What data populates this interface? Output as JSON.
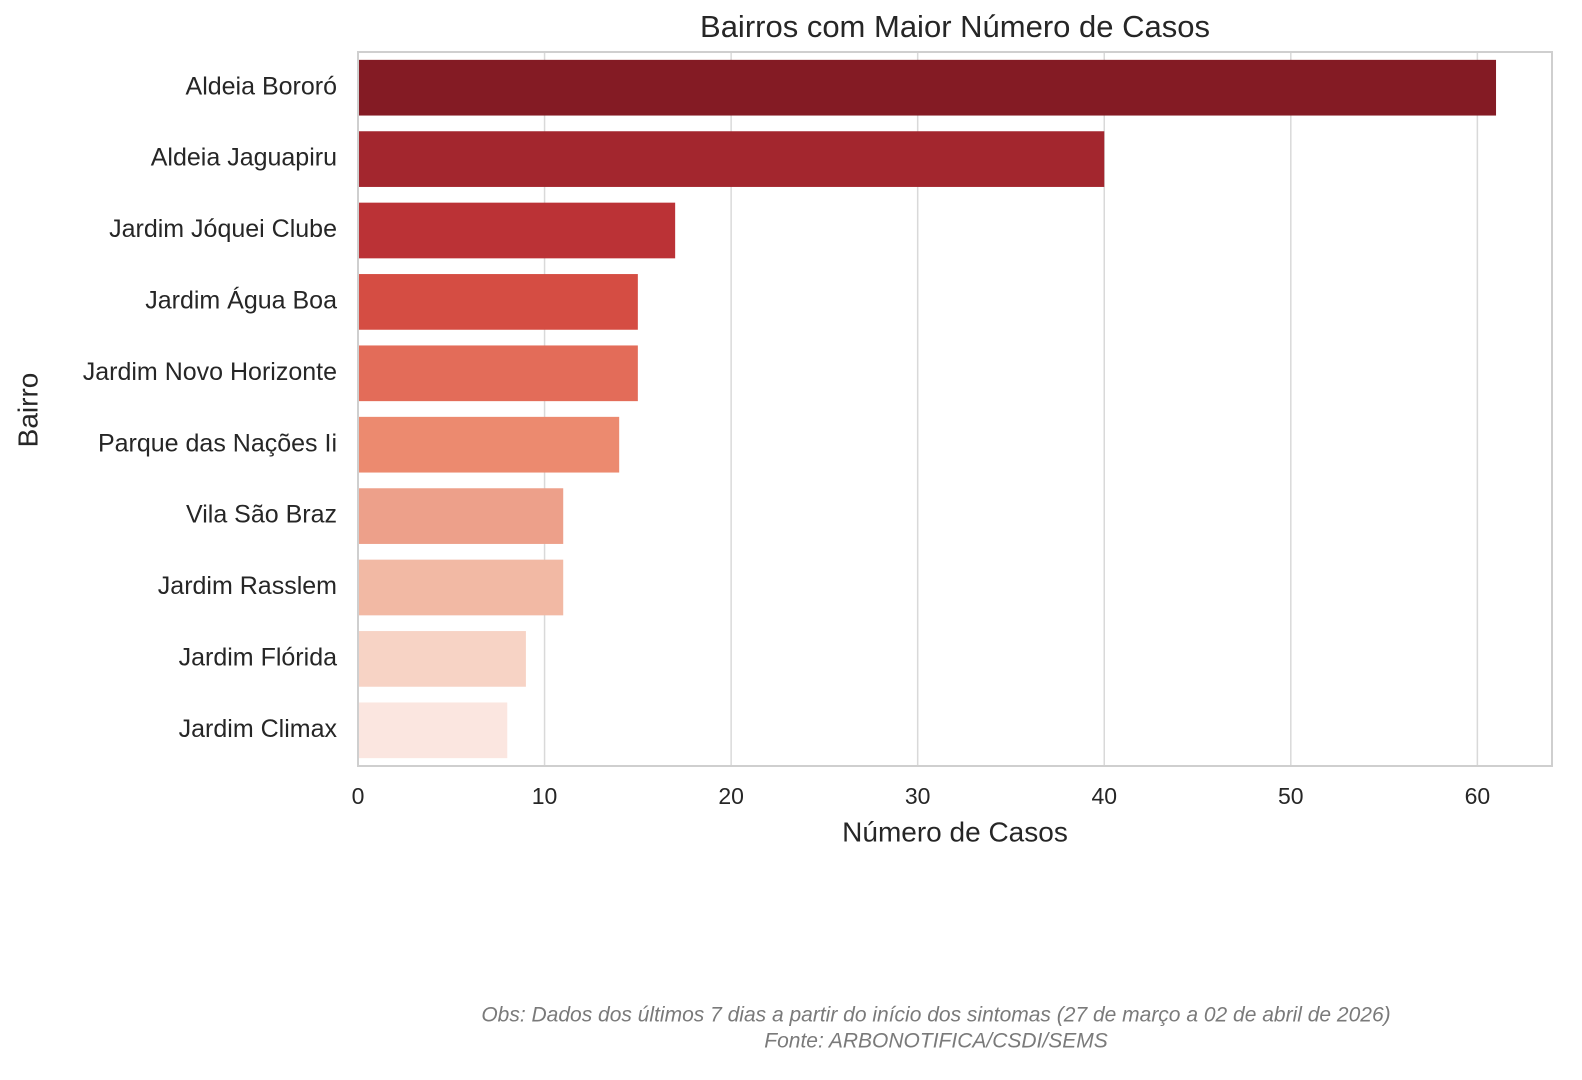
{
  "chart_data": {
    "type": "barh",
    "title": "Bairros com Maior Número de Casos",
    "xlabel": "Número de Casos",
    "ylabel": "Bairro",
    "categories": [
      "Aldeia Bororó",
      "Aldeia Jaguapiru",
      "Jardim Jóquei Clube",
      "Jardim Água Boa",
      "Jardim Novo Horizonte",
      "Parque das Nações Ii",
      "Vila São Braz",
      "Jardim Rasslem",
      "Jardim Flórida",
      "Jardim Climax"
    ],
    "values": [
      61,
      40,
      17,
      15,
      15,
      14,
      11,
      11,
      9,
      8
    ],
    "colors": [
      "#841b24",
      "#a3262e",
      "#bb3236",
      "#d54d43",
      "#e36c59",
      "#ec8a6f",
      "#eda08a",
      "#f2b9a4",
      "#f7d3c5",
      "#fbe6e0"
    ],
    "xlim": [
      0,
      64
    ],
    "xticks": [
      0,
      10,
      20,
      30,
      40,
      50,
      60
    ],
    "grid": true,
    "notes": [
      "Obs: Dados dos últimos 7 dias a partir do início dos sintomas (27 de março a 02 de abril de 2026)",
      "Fonte: ARBONOTIFICA/CSDI/SEMS"
    ]
  }
}
